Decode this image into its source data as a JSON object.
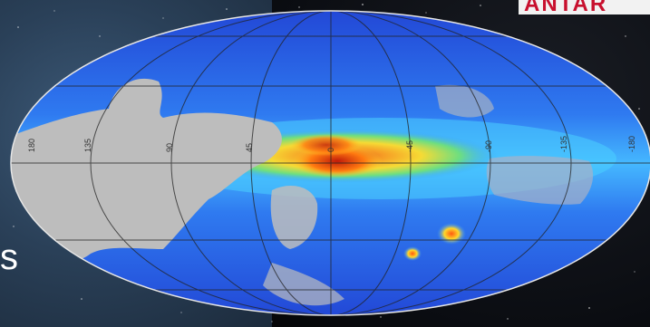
{
  "logo": {
    "text": "ANTAR"
  },
  "side_text": "s",
  "skymap": {
    "longitude_labels": [
      "180",
      "135",
      "90",
      "45",
      "0",
      "-45",
      "-90",
      "-135",
      "-180"
    ],
    "colors": {
      "low": "#1e3fd8",
      "mid": "#3aa0ff",
      "high": "#ffdc2a",
      "peak": "#e23a12",
      "masked": "#bdbdbd"
    }
  }
}
